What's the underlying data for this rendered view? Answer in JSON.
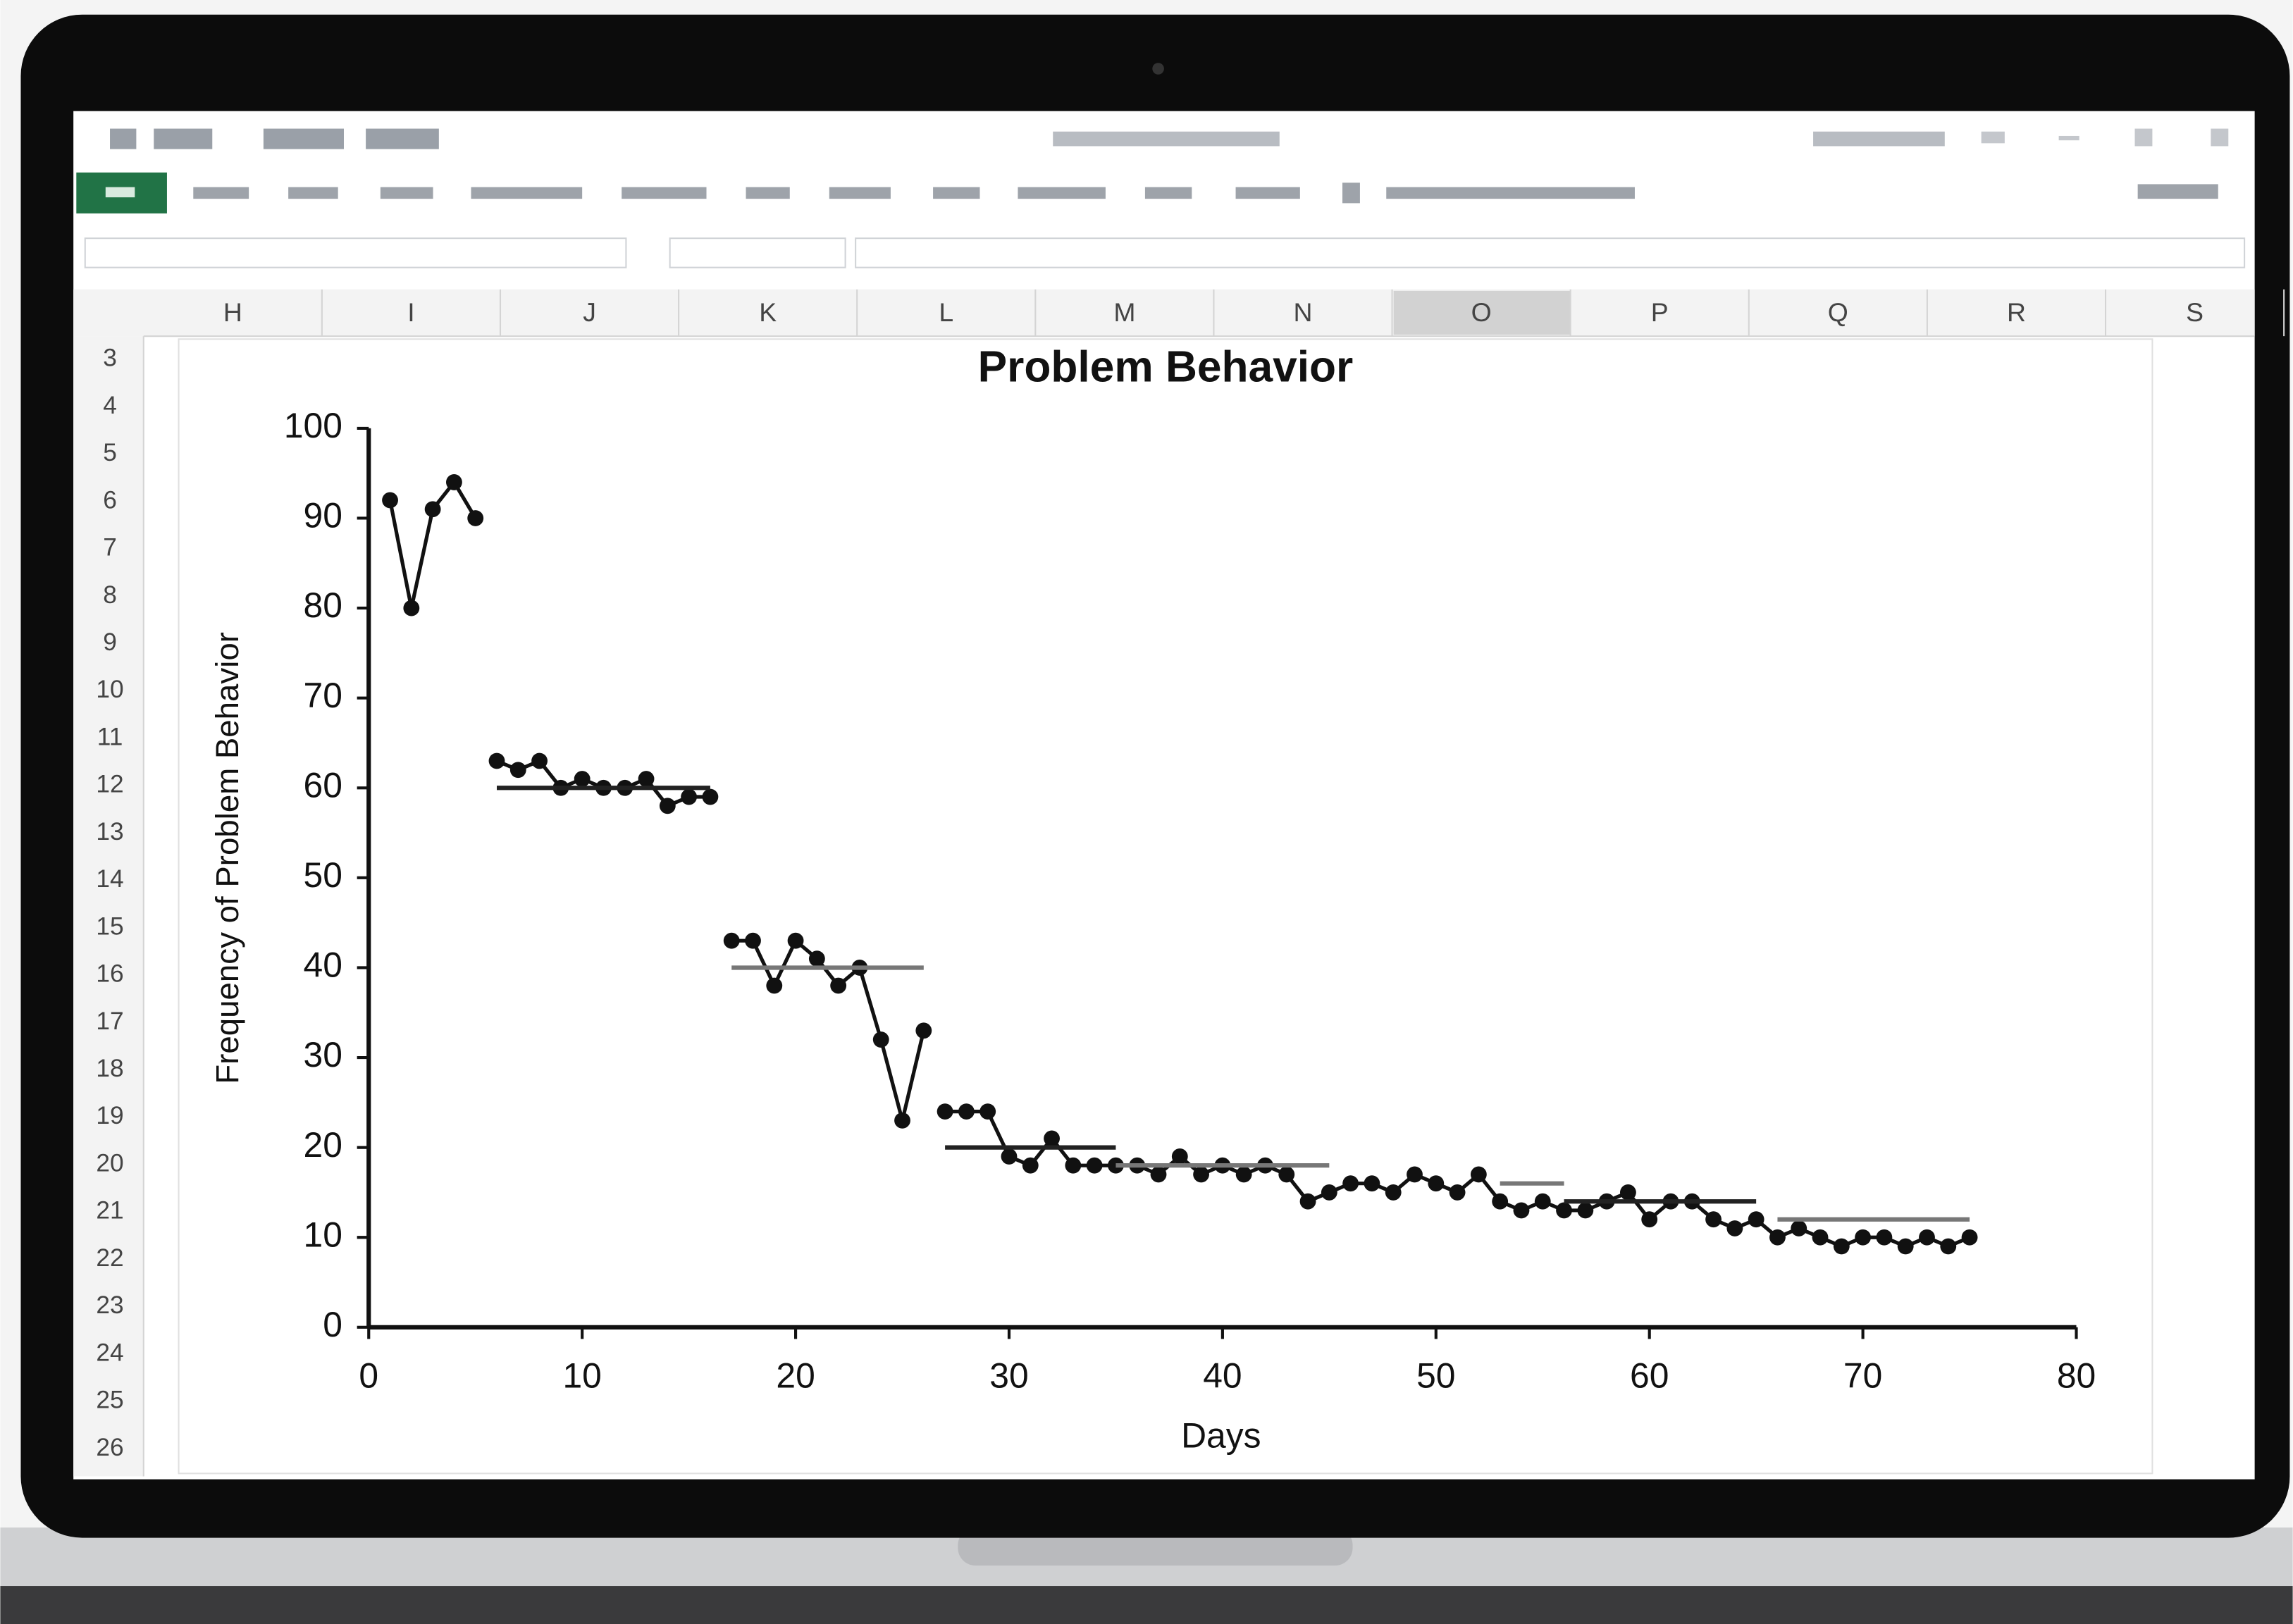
{
  "window": {
    "columns": [
      "H",
      "I",
      "J",
      "K",
      "L",
      "M",
      "N",
      "O",
      "P",
      "Q",
      "R",
      "S"
    ],
    "selected_column": "O",
    "rows": [
      3,
      4,
      5,
      6,
      7,
      8,
      9,
      10,
      11,
      12,
      13,
      14,
      15,
      16,
      17,
      18,
      19,
      20,
      21,
      22,
      23,
      24,
      25,
      26
    ]
  },
  "chart_data": {
    "type": "line",
    "title": "Problem Behavior",
    "x_label": "Days",
    "y_label": "Frequency of Problem Behavior",
    "xlim": [
      0,
      80
    ],
    "xticks": [
      0,
      10,
      20,
      30,
      40,
      50,
      60,
      70,
      80
    ],
    "ylim": [
      0,
      100
    ],
    "yticks": [
      0,
      10,
      20,
      30,
      40,
      50,
      60,
      70,
      80,
      90,
      100
    ],
    "grid": false,
    "series": [
      {
        "color": "#111111",
        "markers": true,
        "x": [
          1,
          2,
          3,
          4,
          5
        ],
        "values": [
          92,
          80,
          91,
          94,
          90
        ]
      },
      {
        "color": "#111111",
        "markers": true,
        "x": [
          6,
          7,
          8,
          9,
          10,
          11,
          12,
          13,
          14,
          15,
          16
        ],
        "values": [
          63,
          62,
          63,
          60,
          61,
          60,
          60,
          61,
          58,
          59,
          59
        ]
      },
      {
        "color": "#111111",
        "markers": true,
        "x": [
          17,
          18,
          19,
          20,
          21,
          22,
          23,
          24,
          25,
          26
        ],
        "values": [
          43,
          43,
          38,
          43,
          41,
          38,
          40,
          32,
          23,
          33
        ]
      },
      {
        "color": "#111111",
        "markers": true,
        "x": [
          27,
          28,
          29,
          30,
          31,
          32,
          33,
          34,
          35,
          36,
          37,
          38,
          39,
          40,
          41,
          42,
          43,
          44,
          45,
          46,
          47,
          48,
          49,
          50,
          51,
          52,
          53,
          54,
          55,
          56,
          57,
          58,
          59,
          60,
          61,
          62,
          63,
          64,
          65,
          66,
          67,
          68,
          69,
          70,
          71,
          72,
          73,
          74,
          75
        ],
        "values": [
          24,
          24,
          24,
          19,
          18,
          21,
          18,
          18,
          18,
          18,
          17,
          19,
          17,
          18,
          17,
          18,
          17,
          14,
          15,
          16,
          16,
          15,
          17,
          16,
          15,
          17,
          14,
          13,
          14,
          13,
          13,
          14,
          15,
          12,
          14,
          14,
          12,
          11,
          12,
          10,
          11,
          10,
          9,
          10,
          10,
          9,
          10,
          9,
          10
        ]
      },
      {
        "color": "#222222",
        "markers": false,
        "x": [
          6,
          16
        ],
        "values": [
          60,
          60
        ]
      },
      {
        "color": "#777777",
        "markers": false,
        "x": [
          17,
          26
        ],
        "values": [
          40,
          40
        ]
      },
      {
        "color": "#222222",
        "markers": false,
        "x": [
          27,
          35
        ],
        "values": [
          20,
          20
        ]
      },
      {
        "color": "#777777",
        "markers": false,
        "x": [
          35,
          45
        ],
        "values": [
          18,
          18
        ]
      },
      {
        "color": "#777777",
        "markers": false,
        "x": [
          53,
          56
        ],
        "values": [
          16,
          16
        ]
      },
      {
        "color": "#222222",
        "markers": false,
        "x": [
          56,
          65
        ],
        "values": [
          14,
          14
        ]
      },
      {
        "color": "#777777",
        "markers": false,
        "x": [
          66,
          75
        ],
        "values": [
          12,
          12
        ]
      }
    ]
  }
}
